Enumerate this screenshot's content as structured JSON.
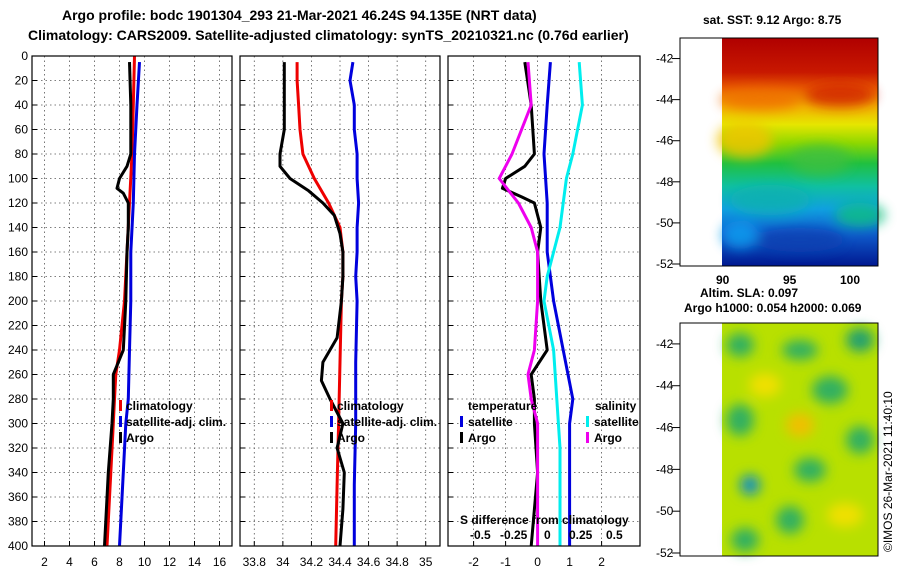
{
  "title": {
    "line1": "Argo profile: bodc 1901304_293 21-Mar-2021 46.24S 94.135E (NRT data)",
    "line2": "Climatology: CARS2009. Satellite-adjusted climatology: synTS_20210321.nc (0.76d earlier)"
  },
  "colors": {
    "red": "#ee0000",
    "blue": "#0000dd",
    "black": "#000000",
    "magenta": "#ee00ee",
    "cyan": "#00eeee"
  },
  "depth_ticks": [
    "0",
    "20",
    "40",
    "60",
    "80",
    "100",
    "120",
    "140",
    "160",
    "180",
    "200",
    "220",
    "240",
    "260",
    "280",
    "300",
    "320",
    "340",
    "360",
    "380",
    "400"
  ],
  "chart_data": [
    {
      "type": "line",
      "name": "temperature-profile",
      "xlim": [
        1,
        17
      ],
      "ylim": [
        400,
        0
      ],
      "xticks": [
        2,
        4,
        6,
        8,
        10,
        12,
        14,
        16
      ],
      "xtick_labels": [
        "2",
        "4",
        "6",
        "8",
        "10",
        "12",
        "14",
        "16"
      ],
      "legend": [
        "climatology",
        "satellite-adj. clim.",
        "Argo"
      ],
      "series": [
        {
          "name": "climatology",
          "color": "red",
          "depth": [
            0,
            40,
            80,
            120,
            160,
            200,
            240,
            260,
            280,
            300,
            340,
            400
          ],
          "values": [
            9.2,
            9.1,
            9.0,
            8.8,
            8.6,
            8.4,
            8.0,
            7.7,
            7.6,
            7.5,
            7.3,
            7.0
          ]
        },
        {
          "name": "satellite-adj. clim.",
          "color": "blue",
          "depth": [
            5,
            40,
            80,
            120,
            160,
            200,
            240,
            280,
            300,
            340,
            400
          ],
          "values": [
            9.6,
            9.4,
            9.2,
            9.1,
            8.9,
            8.9,
            8.8,
            8.7,
            8.5,
            8.3,
            8.0
          ]
        },
        {
          "name": "Argo",
          "color": "black",
          "depth": [
            5,
            40,
            80,
            90,
            100,
            108,
            112,
            120,
            140,
            160,
            200,
            240,
            250,
            260,
            280,
            300,
            340,
            400
          ],
          "values": [
            8.8,
            8.9,
            8.9,
            8.6,
            8.0,
            7.8,
            8.3,
            8.7,
            8.7,
            8.6,
            8.5,
            8.3,
            7.9,
            7.5,
            7.5,
            7.4,
            7.1,
            6.8
          ]
        }
      ]
    },
    {
      "type": "line",
      "name": "salinity-profile",
      "xlim": [
        33.7,
        35.1
      ],
      "ylim": [
        400,
        0
      ],
      "xticks": [
        33.8,
        34.0,
        34.2,
        34.4,
        34.6,
        34.8,
        35.0
      ],
      "xtick_labels": [
        "33.8",
        "34",
        "34.2",
        "34.4",
        "34.6",
        "34.8",
        "35"
      ],
      "legend": [
        "climatology",
        "satellite-adj. clim.",
        "Argo"
      ],
      "series": [
        {
          "name": "climatology",
          "color": "red",
          "depth": [
            5,
            20,
            40,
            60,
            80,
            100,
            120,
            140,
            160,
            180,
            200,
            250,
            300,
            350,
            400
          ],
          "values": [
            34.1,
            34.1,
            34.11,
            34.12,
            34.14,
            34.22,
            34.32,
            34.4,
            34.42,
            34.42,
            34.41,
            34.4,
            34.39,
            34.38,
            34.37
          ]
        },
        {
          "name": "satellite-adj. clim.",
          "color": "blue",
          "depth": [
            5,
            20,
            40,
            60,
            80,
            100,
            120,
            140,
            160,
            180,
            200,
            250,
            300,
            350,
            400
          ],
          "values": [
            34.49,
            34.47,
            34.5,
            34.5,
            34.52,
            34.52,
            34.53,
            34.52,
            34.52,
            34.51,
            34.52,
            34.51,
            34.51,
            34.5,
            34.5
          ]
        },
        {
          "name": "Argo",
          "color": "black",
          "depth": [
            5,
            30,
            60,
            80,
            90,
            100,
            110,
            120,
            130,
            145,
            160,
            180,
            200,
            230,
            250,
            265,
            280,
            300,
            320,
            340,
            370,
            400
          ],
          "values": [
            34.01,
            34.01,
            34.01,
            33.98,
            33.98,
            34.05,
            34.18,
            34.28,
            34.36,
            34.4,
            34.42,
            34.42,
            34.41,
            34.38,
            34.28,
            34.27,
            34.33,
            34.42,
            34.38,
            34.43,
            34.42,
            34.4
          ]
        }
      ]
    },
    {
      "type": "line",
      "name": "difference-from-climatology",
      "xlim": [
        -2.8,
        3.2
      ],
      "ylim": [
        400,
        0
      ],
      "xticks": [
        -2,
        -1,
        0,
        1,
        2
      ],
      "xtick_labels": [
        "-2",
        "-1",
        "0",
        "1",
        "2"
      ],
      "s_ticks": [
        "-0.5",
        "-0.25",
        "0",
        "0.25",
        "0.5"
      ],
      "s_label": "S difference from climatology",
      "legend_temperature": {
        "title": "temperature",
        "items": [
          "satellite",
          "Argo"
        ]
      },
      "legend_salinity": {
        "title": "salinity",
        "items": [
          "satellite",
          "Argo"
        ]
      },
      "series": [
        {
          "name": "temperature satellite",
          "color": "blue",
          "depth": [
            5,
            40,
            80,
            120,
            160,
            200,
            240,
            280,
            300,
            340,
            400
          ],
          "values": [
            0.4,
            0.3,
            0.2,
            0.3,
            0.3,
            0.5,
            0.8,
            1.1,
            1.0,
            1.0,
            1.0
          ]
        },
        {
          "name": "temperature Argo",
          "color": "black",
          "depth": [
            5,
            40,
            80,
            90,
            100,
            108,
            115,
            120,
            140,
            160,
            200,
            240,
            260,
            280,
            300,
            340,
            400
          ],
          "values": [
            -0.4,
            -0.2,
            -0.1,
            -0.4,
            -1.0,
            -1.1,
            -0.5,
            -0.1,
            0.1,
            0.0,
            0.1,
            0.3,
            -0.2,
            -0.1,
            -0.1,
            0.0,
            -0.2
          ]
        },
        {
          "name": "salinity satellite",
          "color": "cyan",
          "depth": [
            5,
            40,
            80,
            100,
            120,
            140,
            160,
            180,
            200,
            240,
            280,
            320,
            400
          ],
          "values": [
            1.3,
            1.4,
            1.1,
            0.9,
            0.8,
            0.7,
            0.5,
            0.3,
            0.2,
            0.5,
            0.6,
            0.7,
            0.7
          ]
        },
        {
          "name": "salinity Argo",
          "color": "magenta",
          "depth": [
            5,
            40,
            80,
            90,
            100,
            110,
            120,
            140,
            160,
            200,
            240,
            260,
            280,
            300,
            320,
            400
          ],
          "values": [
            -0.3,
            -0.2,
            -0.8,
            -1.0,
            -1.2,
            -0.9,
            -0.6,
            -0.2,
            0.0,
            0.0,
            -0.1,
            -0.3,
            -0.2,
            0.0,
            0.0,
            0.0
          ]
        }
      ]
    }
  ],
  "maps": {
    "sst": {
      "title": "sat. SST: 9.12 Argo: 8.75",
      "lat_ticks": [
        "-42",
        "-44",
        "-46",
        "-48",
        "-50",
        "-52"
      ],
      "lon_ticks": [
        "90",
        "95",
        "100"
      ]
    },
    "sla": {
      "title_line1": "Altim. SLA: 0.097",
      "title_line2": "Argo h1000: 0.054 h2000: 0.069",
      "lat_ticks": [
        "-42",
        "-44",
        "-46",
        "-48",
        "-50",
        "-52"
      ]
    }
  },
  "credit": "©IMOS 26-Mar-2021 11:40:10"
}
